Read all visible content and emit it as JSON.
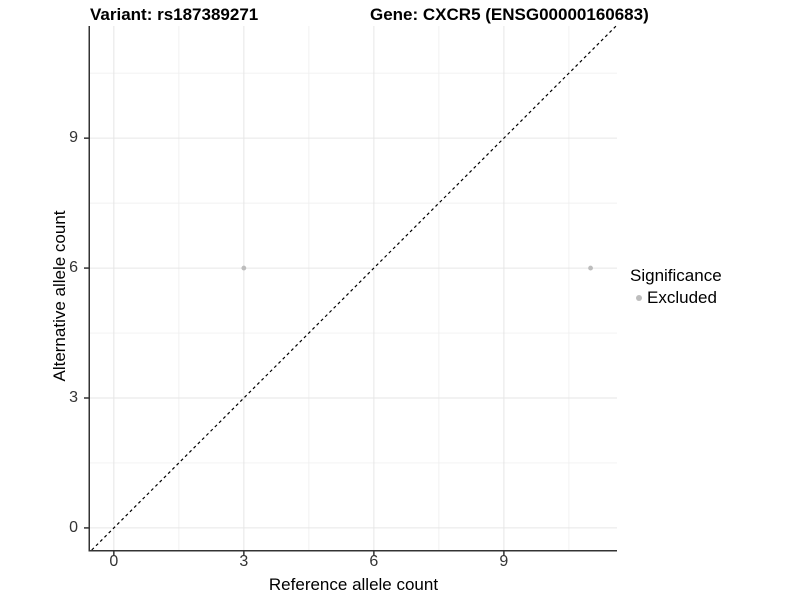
{
  "titles": {
    "variant": "Variant: rs187389271",
    "gene": "Gene: CXCR5 (ENSG00000160683)"
  },
  "chart_data": {
    "type": "scatter",
    "xlabel": "Reference allele count",
    "ylabel": "Alternative allele count",
    "xlim": [
      -0.55,
      11.61
    ],
    "ylim": [
      -0.51,
      11.59
    ],
    "x_major_ticks": [
      0,
      3,
      6,
      9
    ],
    "y_major_ticks": [
      0,
      3,
      6,
      9
    ],
    "x_minor_ticks": [
      1.5,
      4.5,
      7.5,
      10.5
    ],
    "y_minor_ticks": [
      1.5,
      4.5,
      7.5,
      10.5
    ],
    "grid": "on",
    "identity_line": {
      "slope": 1,
      "intercept": 0,
      "style": "dashed",
      "color": "#000000"
    },
    "series": [
      {
        "name": "Excluded",
        "color": "#bdbdbd",
        "points": [
          [
            3,
            6
          ],
          [
            11,
            6
          ]
        ]
      }
    ],
    "legend": {
      "position": "right",
      "title": "Significance",
      "items": [
        {
          "label": "Excluded",
          "color": "#bdbdbd"
        }
      ]
    },
    "colors": {
      "axis": "#333333",
      "grid_major": "#e6e6e6",
      "grid_minor": "#f0f0f0",
      "tick_label": "#333333"
    }
  }
}
